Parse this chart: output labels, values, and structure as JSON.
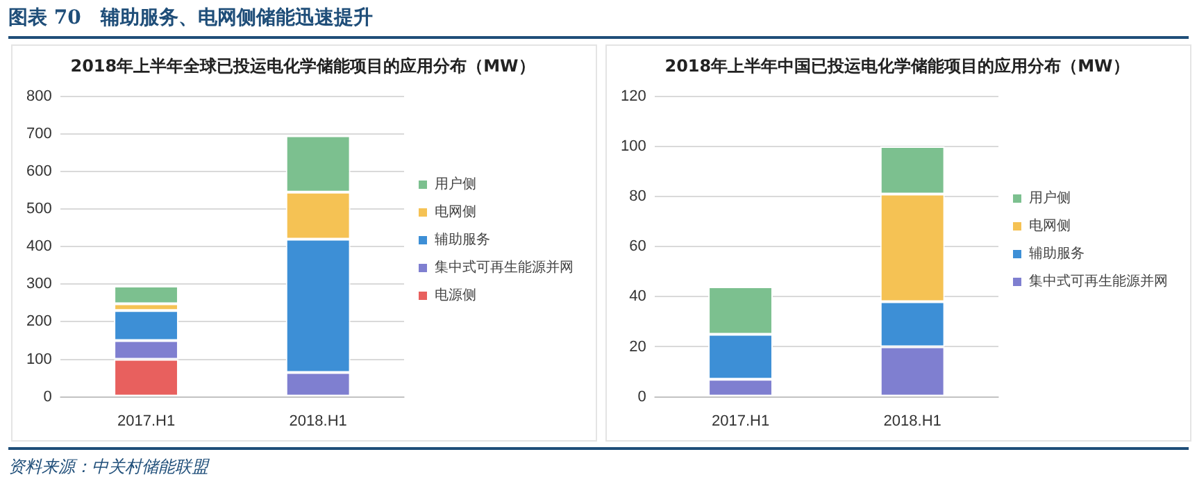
{
  "chart_data": [
    {
      "type": "bar",
      "title": "2018年上半年全球已投运电化学储能项目的应用分布（MW）",
      "categories": [
        "2017.H1",
        "2018.H1"
      ],
      "stacked": true,
      "legend": "right",
      "grid": "y",
      "ylim": [
        0,
        800
      ],
      "yticks": [
        0,
        100,
        200,
        300,
        400,
        500,
        600,
        700,
        800
      ],
      "annotations": [
        "图表 70　辅助服务、电网侧储能迅速提升"
      ],
      "series": [
        {
          "name": "电源侧",
          "color": "#e8605e",
          "values": [
            100,
            0
          ]
        },
        {
          "name": "集中式可再生能源并网",
          "color": "#7f7fd0",
          "values": [
            50,
            65
          ]
        },
        {
          "name": "辅助服务",
          "color": "#3d8fd6",
          "values": [
            80,
            355
          ]
        },
        {
          "name": "电网侧",
          "color": "#f5c254",
          "values": [
            18,
            125
          ]
        },
        {
          "name": "用户侧",
          "color": "#7cc08f",
          "values": [
            47,
            150
          ]
        }
      ]
    },
    {
      "type": "bar",
      "title": "2018年上半年中国已投运电化学储能项目的应用分布（MW）",
      "categories": [
        "2017.H1",
        "2018.H1"
      ],
      "stacked": true,
      "legend": "right",
      "grid": "y",
      "ylim": [
        0,
        120
      ],
      "yticks": [
        0,
        20,
        40,
        60,
        80,
        100,
        120
      ],
      "annotations": [
        "资料来源：中关村储能联盟"
      ],
      "series": [
        {
          "name": "集中式可再生能源并网",
          "color": "#7f7fd0",
          "values": [
            7,
            20
          ]
        },
        {
          "name": "辅助服务",
          "color": "#3d8fd6",
          "values": [
            18,
            18
          ]
        },
        {
          "name": "电网侧",
          "color": "#f5c254",
          "values": [
            0,
            43
          ]
        },
        {
          "name": "用户侧",
          "color": "#7cc08f",
          "values": [
            19,
            19
          ]
        }
      ]
    }
  ]
}
